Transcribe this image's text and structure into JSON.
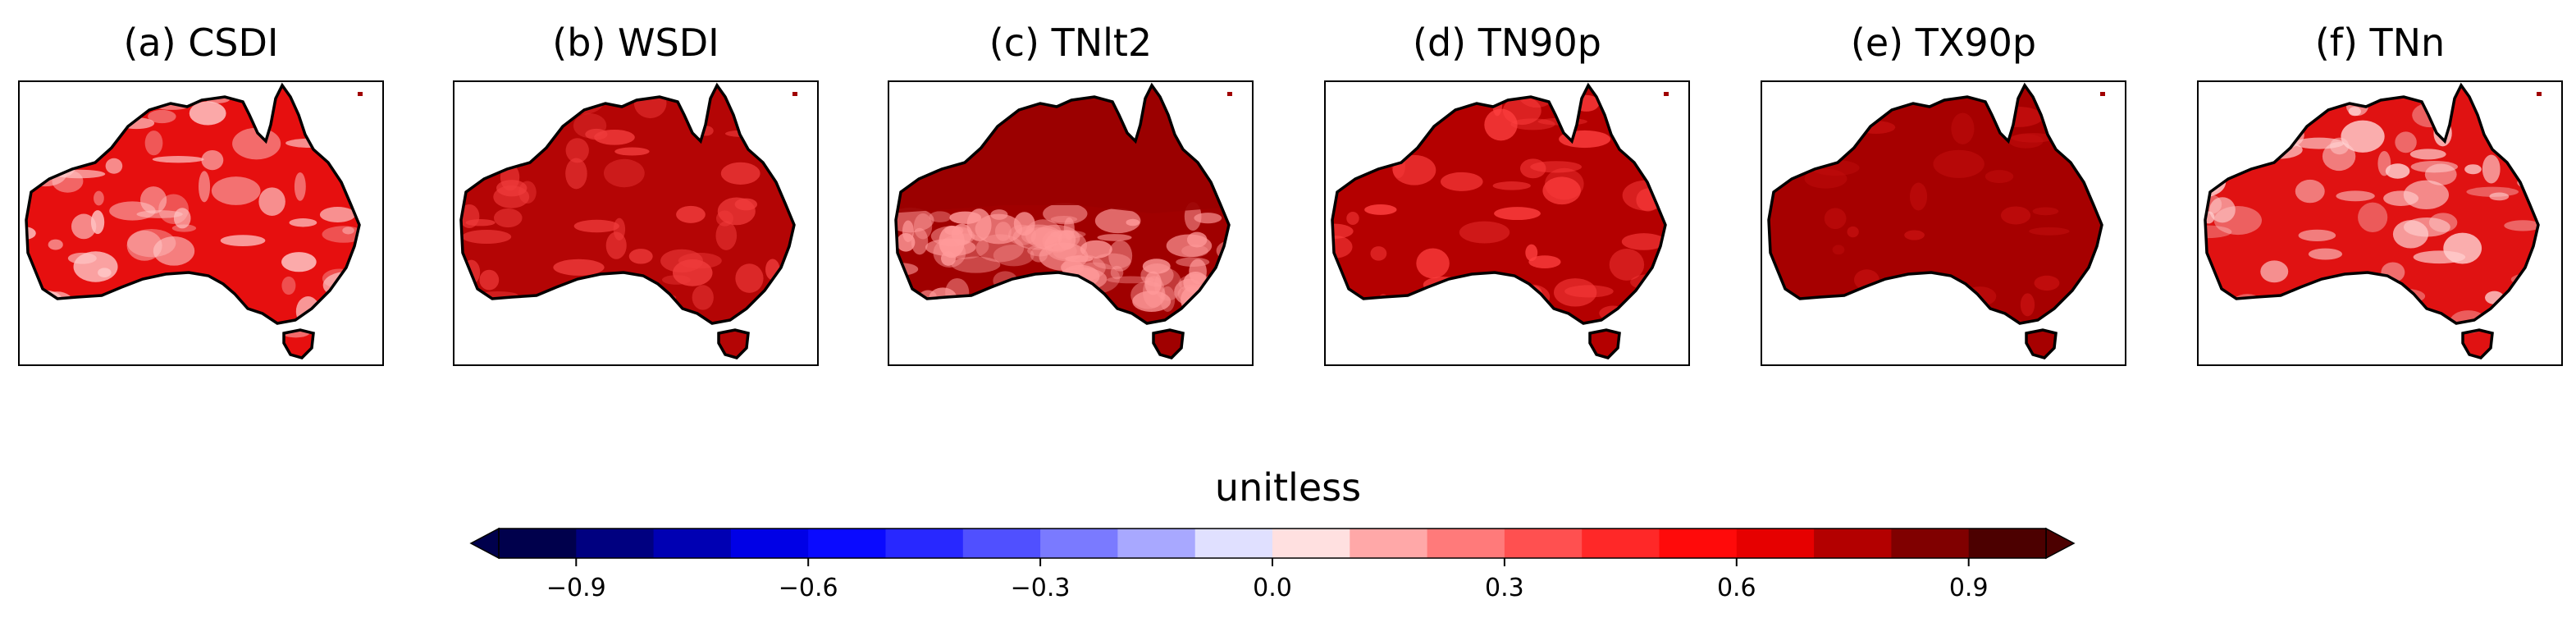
{
  "panels": [
    {
      "title": "(a) CSDI",
      "shading": "mostly red, lighter patches in the west and south",
      "base": "#e60f0f",
      "patch": "#ffc8c8",
      "patchAmount": 0.55
    },
    {
      "title": "(b) WSDI",
      "shading": "dark red with some lighter red areas",
      "base": "#b40505",
      "patch": "#f03c3c",
      "patchAmount": 0.35
    },
    {
      "title": "(c) TNlt2",
      "shading": "very dark red in the north, white/pink band in the south",
      "base": "#a00000",
      "patch": "#ff9a9a",
      "patchAmount": 0.9
    },
    {
      "title": "(d) TN90p",
      "shading": "dark red with red patches",
      "base": "#b40000",
      "patch": "#ff4040",
      "patchAmount": 0.3
    },
    {
      "title": "(e) TX90p",
      "shading": "uniform very dark red",
      "base": "#a60000",
      "patch": "#c81010",
      "patchAmount": 0.12
    },
    {
      "title": "(f) TNn",
      "shading": "red with pale patches in the centre-west",
      "base": "#e01212",
      "patch": "#ffd0d0",
      "patchAmount": 0.45
    }
  ],
  "colorbar": {
    "title": "unitless",
    "min": -1.0,
    "max": 1.0,
    "levels": [
      -1.0,
      -0.9,
      -0.8,
      -0.7,
      -0.6,
      -0.5,
      -0.4,
      -0.3,
      -0.2,
      -0.1,
      0.0,
      0.1,
      0.2,
      0.3,
      0.4,
      0.5,
      0.6,
      0.7,
      0.8,
      0.9,
      1.0
    ],
    "colors": [
      "#00004c",
      "#000080",
      "#0000b3",
      "#0000e6",
      "#0a0aff",
      "#2828ff",
      "#5050ff",
      "#7a7aff",
      "#a8a8ff",
      "#e0e0ff",
      "#ffe0e0",
      "#ffa8a8",
      "#ff7a7a",
      "#ff5050",
      "#ff2828",
      "#ff0a0a",
      "#e60000",
      "#b30000",
      "#800000",
      "#4c0000"
    ],
    "ticks": [
      -0.9,
      -0.6,
      -0.3,
      0.0,
      0.3,
      0.6,
      0.9
    ],
    "tick_labels": [
      "−0.9",
      "−0.6",
      "−0.3",
      "0.0",
      "0.3",
      "0.6",
      "0.9"
    ],
    "extend": "both"
  }
}
